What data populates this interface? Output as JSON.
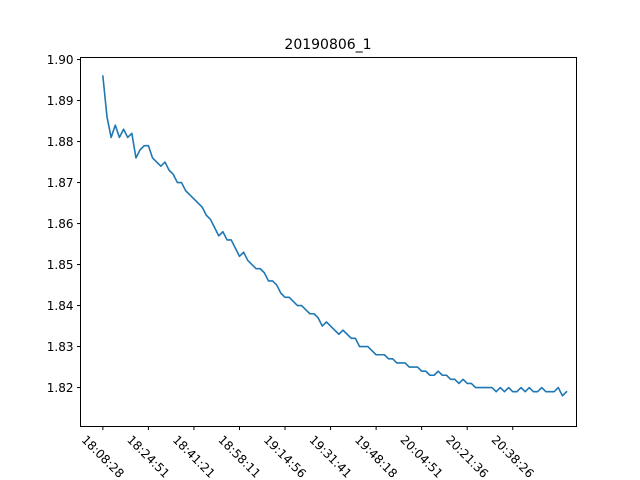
{
  "chart_data": {
    "type": "line",
    "title": "20190806_1",
    "xlabel": "",
    "ylabel": "",
    "grid": false,
    "x_tick_labels": [
      "18:08:28",
      "18:24:51",
      "18:41:21",
      "18:58:11",
      "19:14:56",
      "19:31:41",
      "19:48:18",
      "20:04:51",
      "20:21:36",
      "20:38:26"
    ],
    "y_ticks": [
      1.82,
      1.83,
      1.84,
      1.85,
      1.86,
      1.87,
      1.88,
      1.89,
      1.9
    ],
    "y_tick_labels": [
      "1.82",
      "1.83",
      "1.84",
      "1.85",
      "1.86",
      "1.87",
      "1.88",
      "1.89",
      "1.90"
    ],
    "xlim": [
      -5.4,
      114.4
    ],
    "ylim": [
      1.8105,
      1.9005
    ],
    "series": [
      {
        "color": "#1f77b4",
        "x_start": 0,
        "x_step": 1,
        "values": [
          1.896,
          1.886,
          1.881,
          1.884,
          1.881,
          1.883,
          1.881,
          1.882,
          1.876,
          1.878,
          1.879,
          1.879,
          1.876,
          1.875,
          1.874,
          1.875,
          1.873,
          1.872,
          1.87,
          1.87,
          1.868,
          1.867,
          1.866,
          1.865,
          1.864,
          1.862,
          1.861,
          1.859,
          1.857,
          1.858,
          1.856,
          1.856,
          1.854,
          1.852,
          1.853,
          1.851,
          1.85,
          1.849,
          1.849,
          1.848,
          1.846,
          1.846,
          1.845,
          1.843,
          1.842,
          1.842,
          1.841,
          1.84,
          1.84,
          1.839,
          1.838,
          1.838,
          1.837,
          1.835,
          1.836,
          1.835,
          1.834,
          1.833,
          1.834,
          1.833,
          1.832,
          1.832,
          1.83,
          1.83,
          1.83,
          1.829,
          1.828,
          1.828,
          1.828,
          1.827,
          1.827,
          1.826,
          1.826,
          1.826,
          1.825,
          1.825,
          1.825,
          1.824,
          1.824,
          1.823,
          1.823,
          1.824,
          1.823,
          1.823,
          1.822,
          1.822,
          1.821,
          1.822,
          1.821,
          1.821,
          1.82,
          1.82,
          1.82,
          1.82,
          1.82,
          1.819,
          1.82,
          1.819,
          1.82,
          1.819,
          1.819,
          1.82,
          1.819,
          1.82,
          1.819,
          1.819,
          1.82,
          1.819,
          1.819,
          1.819,
          1.82,
          1.818,
          1.819
        ]
      }
    ]
  }
}
